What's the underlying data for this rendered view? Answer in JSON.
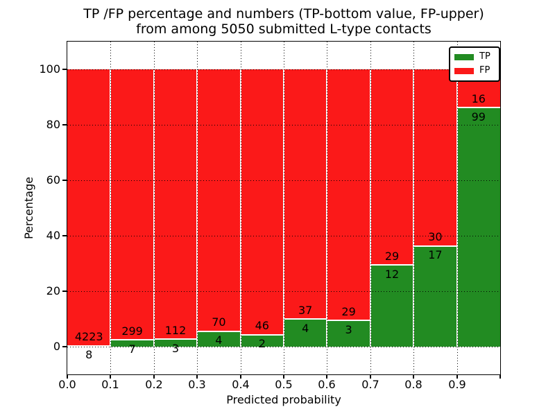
{
  "title": {
    "line1": "TP /FP percentage and numbers (TP-bottom value, FP-upper)",
    "line2": "from among 5050 submitted L-type contacts"
  },
  "axes": {
    "xlabel": "Predicted probability",
    "ylabel": "Percentage"
  },
  "legend": {
    "position": "upper right",
    "items": [
      {
        "label": "TP",
        "color": "#228b22"
      },
      {
        "label": "FP",
        "color": "#fb1919"
      }
    ]
  },
  "colors": {
    "tp": "#228b22",
    "fp": "#fb1919",
    "grid": "#000000",
    "background": "#ffffff",
    "bar_edge": "#ffffff"
  },
  "chart_data": {
    "type": "bar",
    "stacked": true,
    "normalized_to_percent": 100,
    "title": "TP /FP percentage and numbers (TP-bottom value, FP-upper) from among 5050 submitted L-type contacts",
    "xlabel": "Predicted probability",
    "ylabel": "Percentage",
    "xlim": [
      0.0,
      1.0
    ],
    "ylim": [
      -10,
      110
    ],
    "bar_width": 0.1,
    "xtick_labels": [
      "0.0",
      "0.1",
      "0.2",
      "0.3",
      "0.4",
      "0.5",
      "0.6",
      "0.7",
      "0.8",
      "0.9"
    ],
    "ytick_values": [
      0,
      20,
      40,
      60,
      80,
      100
    ],
    "grid": "dotted, both axes",
    "legend_position": "upper right",
    "total_contacts": 5050,
    "series_order_bottom_to_top": [
      "TP",
      "FP"
    ],
    "bins": [
      {
        "x_start": 0.0,
        "tp": 8,
        "fp": 4223
      },
      {
        "x_start": 0.1,
        "tp": 7,
        "fp": 299
      },
      {
        "x_start": 0.2,
        "tp": 3,
        "fp": 112
      },
      {
        "x_start": 0.3,
        "tp": 4,
        "fp": 70
      },
      {
        "x_start": 0.4,
        "tp": 2,
        "fp": 46
      },
      {
        "x_start": 0.5,
        "tp": 4,
        "fp": 37
      },
      {
        "x_start": 0.6,
        "tp": 3,
        "fp": 29
      },
      {
        "x_start": 0.7,
        "tp": 12,
        "fp": 29
      },
      {
        "x_start": 0.8,
        "tp": 17,
        "fp": 30
      },
      {
        "x_start": 0.9,
        "tp": 99,
        "fp": 16
      }
    ]
  }
}
